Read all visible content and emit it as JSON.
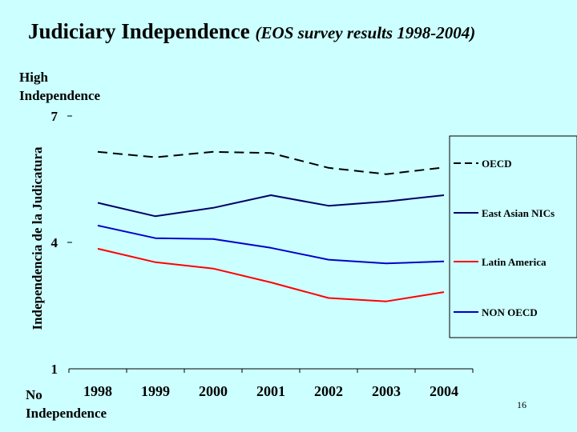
{
  "title": "Judiciary Independence",
  "subtitle": "(EOS survey results 1998-2004)",
  "high_label": [
    "High",
    "Independence"
  ],
  "low_label": [
    "No",
    "Independence"
  ],
  "page_number": "16",
  "chart_data": {
    "type": "line",
    "title": "Judiciary Independence (EOS survey results 1998-2004)",
    "ylabel": "Independencia de la Judicatura",
    "xlabel": "",
    "categories": [
      "1998",
      "1999",
      "2000",
      "2001",
      "2002",
      "2003",
      "2004"
    ],
    "ylim": [
      1,
      7
    ],
    "yticks": [
      1,
      4,
      7
    ],
    "grid": false,
    "legend_position": "right",
    "series": [
      {
        "name": "OECD",
        "color": "#000000",
        "dashed": true,
        "values": [
          6.15,
          6.02,
          6.15,
          6.12,
          5.77,
          5.62,
          5.78
        ]
      },
      {
        "name": "East Asian NICs",
        "color": "#000066",
        "dashed": false,
        "values": [
          4.94,
          4.62,
          4.82,
          5.12,
          4.87,
          4.97,
          5.12
        ]
      },
      {
        "name": "Latin America",
        "color": "#ff0000",
        "dashed": false,
        "values": [
          3.85,
          3.53,
          3.38,
          3.05,
          2.68,
          2.6,
          2.82
        ]
      },
      {
        "name": "NON OECD",
        "color": "#0000cc",
        "dashed": false,
        "values": [
          4.4,
          4.1,
          4.08,
          3.87,
          3.59,
          3.5,
          3.55
        ]
      }
    ]
  }
}
